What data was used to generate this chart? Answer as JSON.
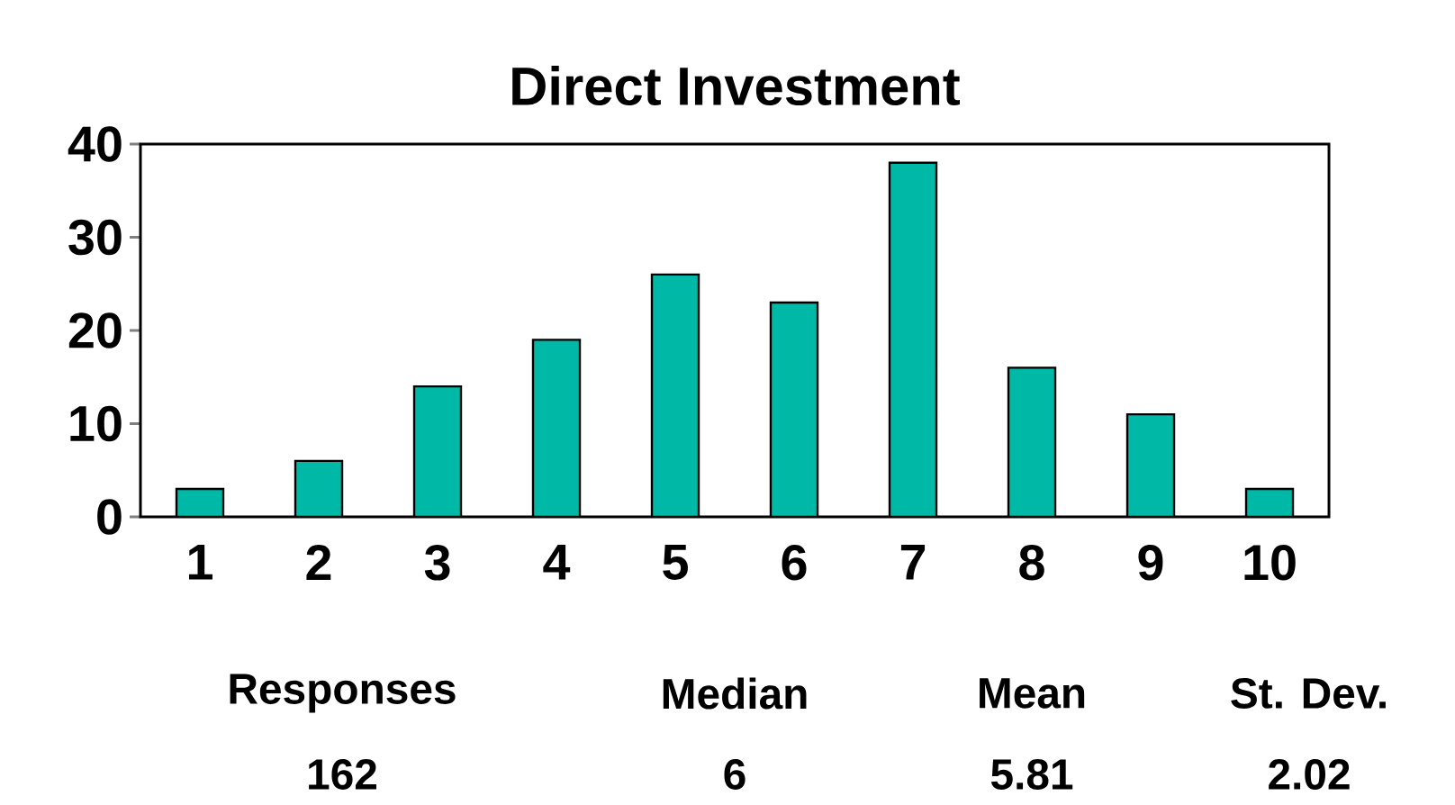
{
  "chart_data": {
    "type": "bar",
    "title": "Direct Investment",
    "categories": [
      "1",
      "2",
      "3",
      "4",
      "5",
      "6",
      "7",
      "8",
      "9",
      "10"
    ],
    "values": [
      3,
      6,
      14,
      19,
      26,
      23,
      38,
      16,
      11,
      3
    ],
    "color": "#00b8a6",
    "ylim": [
      0,
      40
    ],
    "yticks": [
      0,
      10,
      20,
      30,
      40
    ],
    "annotations": [
      "Responses",
      "162",
      "Median",
      "6",
      "Mean",
      "5.81",
      "St. Dev.",
      "2.02"
    ]
  }
}
